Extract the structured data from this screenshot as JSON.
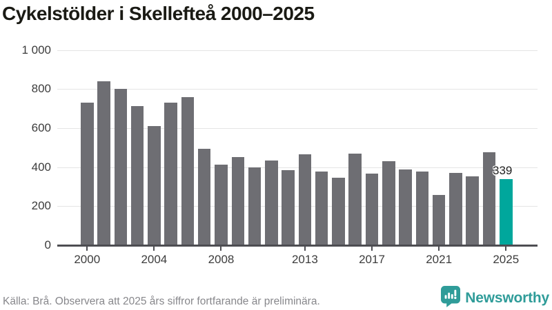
{
  "header": {
    "title": "Cykelstölder i Skellefteå 2000–2025"
  },
  "chart_data": {
    "type": "bar",
    "title": "Cykelstölder i Skellefteå 2000–2025",
    "x": [
      2000,
      2001,
      2002,
      2003,
      2004,
      2005,
      2006,
      2007,
      2008,
      2009,
      2010,
      2011,
      2012,
      2013,
      2014,
      2015,
      2016,
      2017,
      2018,
      2019,
      2020,
      2021,
      2022,
      2023,
      2024,
      2025
    ],
    "values": [
      730,
      840,
      800,
      713,
      609,
      730,
      760,
      493,
      414,
      453,
      398,
      435,
      384,
      467,
      376,
      347,
      470,
      368,
      430,
      387,
      379,
      257,
      369,
      351,
      475,
      339
    ],
    "highlight_index": 25,
    "highlight_label": "339",
    "xlabel": "",
    "ylabel": "",
    "ylim": [
      0,
      1000
    ],
    "yticks": [
      0,
      200,
      400,
      600,
      800,
      1000
    ],
    "ytick_labels": [
      "0",
      "200",
      "400",
      "600",
      "800",
      "1 000"
    ],
    "xtick_years": [
      2000,
      2004,
      2008,
      2013,
      2017,
      2021,
      2025
    ],
    "grid": "horizontal",
    "legend": "none",
    "colors": {
      "bar": "#6e6e73",
      "highlight": "#00a79c",
      "axis": "#4d4d52",
      "gridline": "#e4e4e4",
      "tick_text": "#3c3c3c",
      "annotation_text": "#1f1f1f"
    }
  },
  "footer": {
    "source": "Källa: Brå. Observera att 2025 års siffror fortfarande är preliminära.",
    "logo_text": "Newsworthy",
    "logo_color": "#2f9c99"
  }
}
